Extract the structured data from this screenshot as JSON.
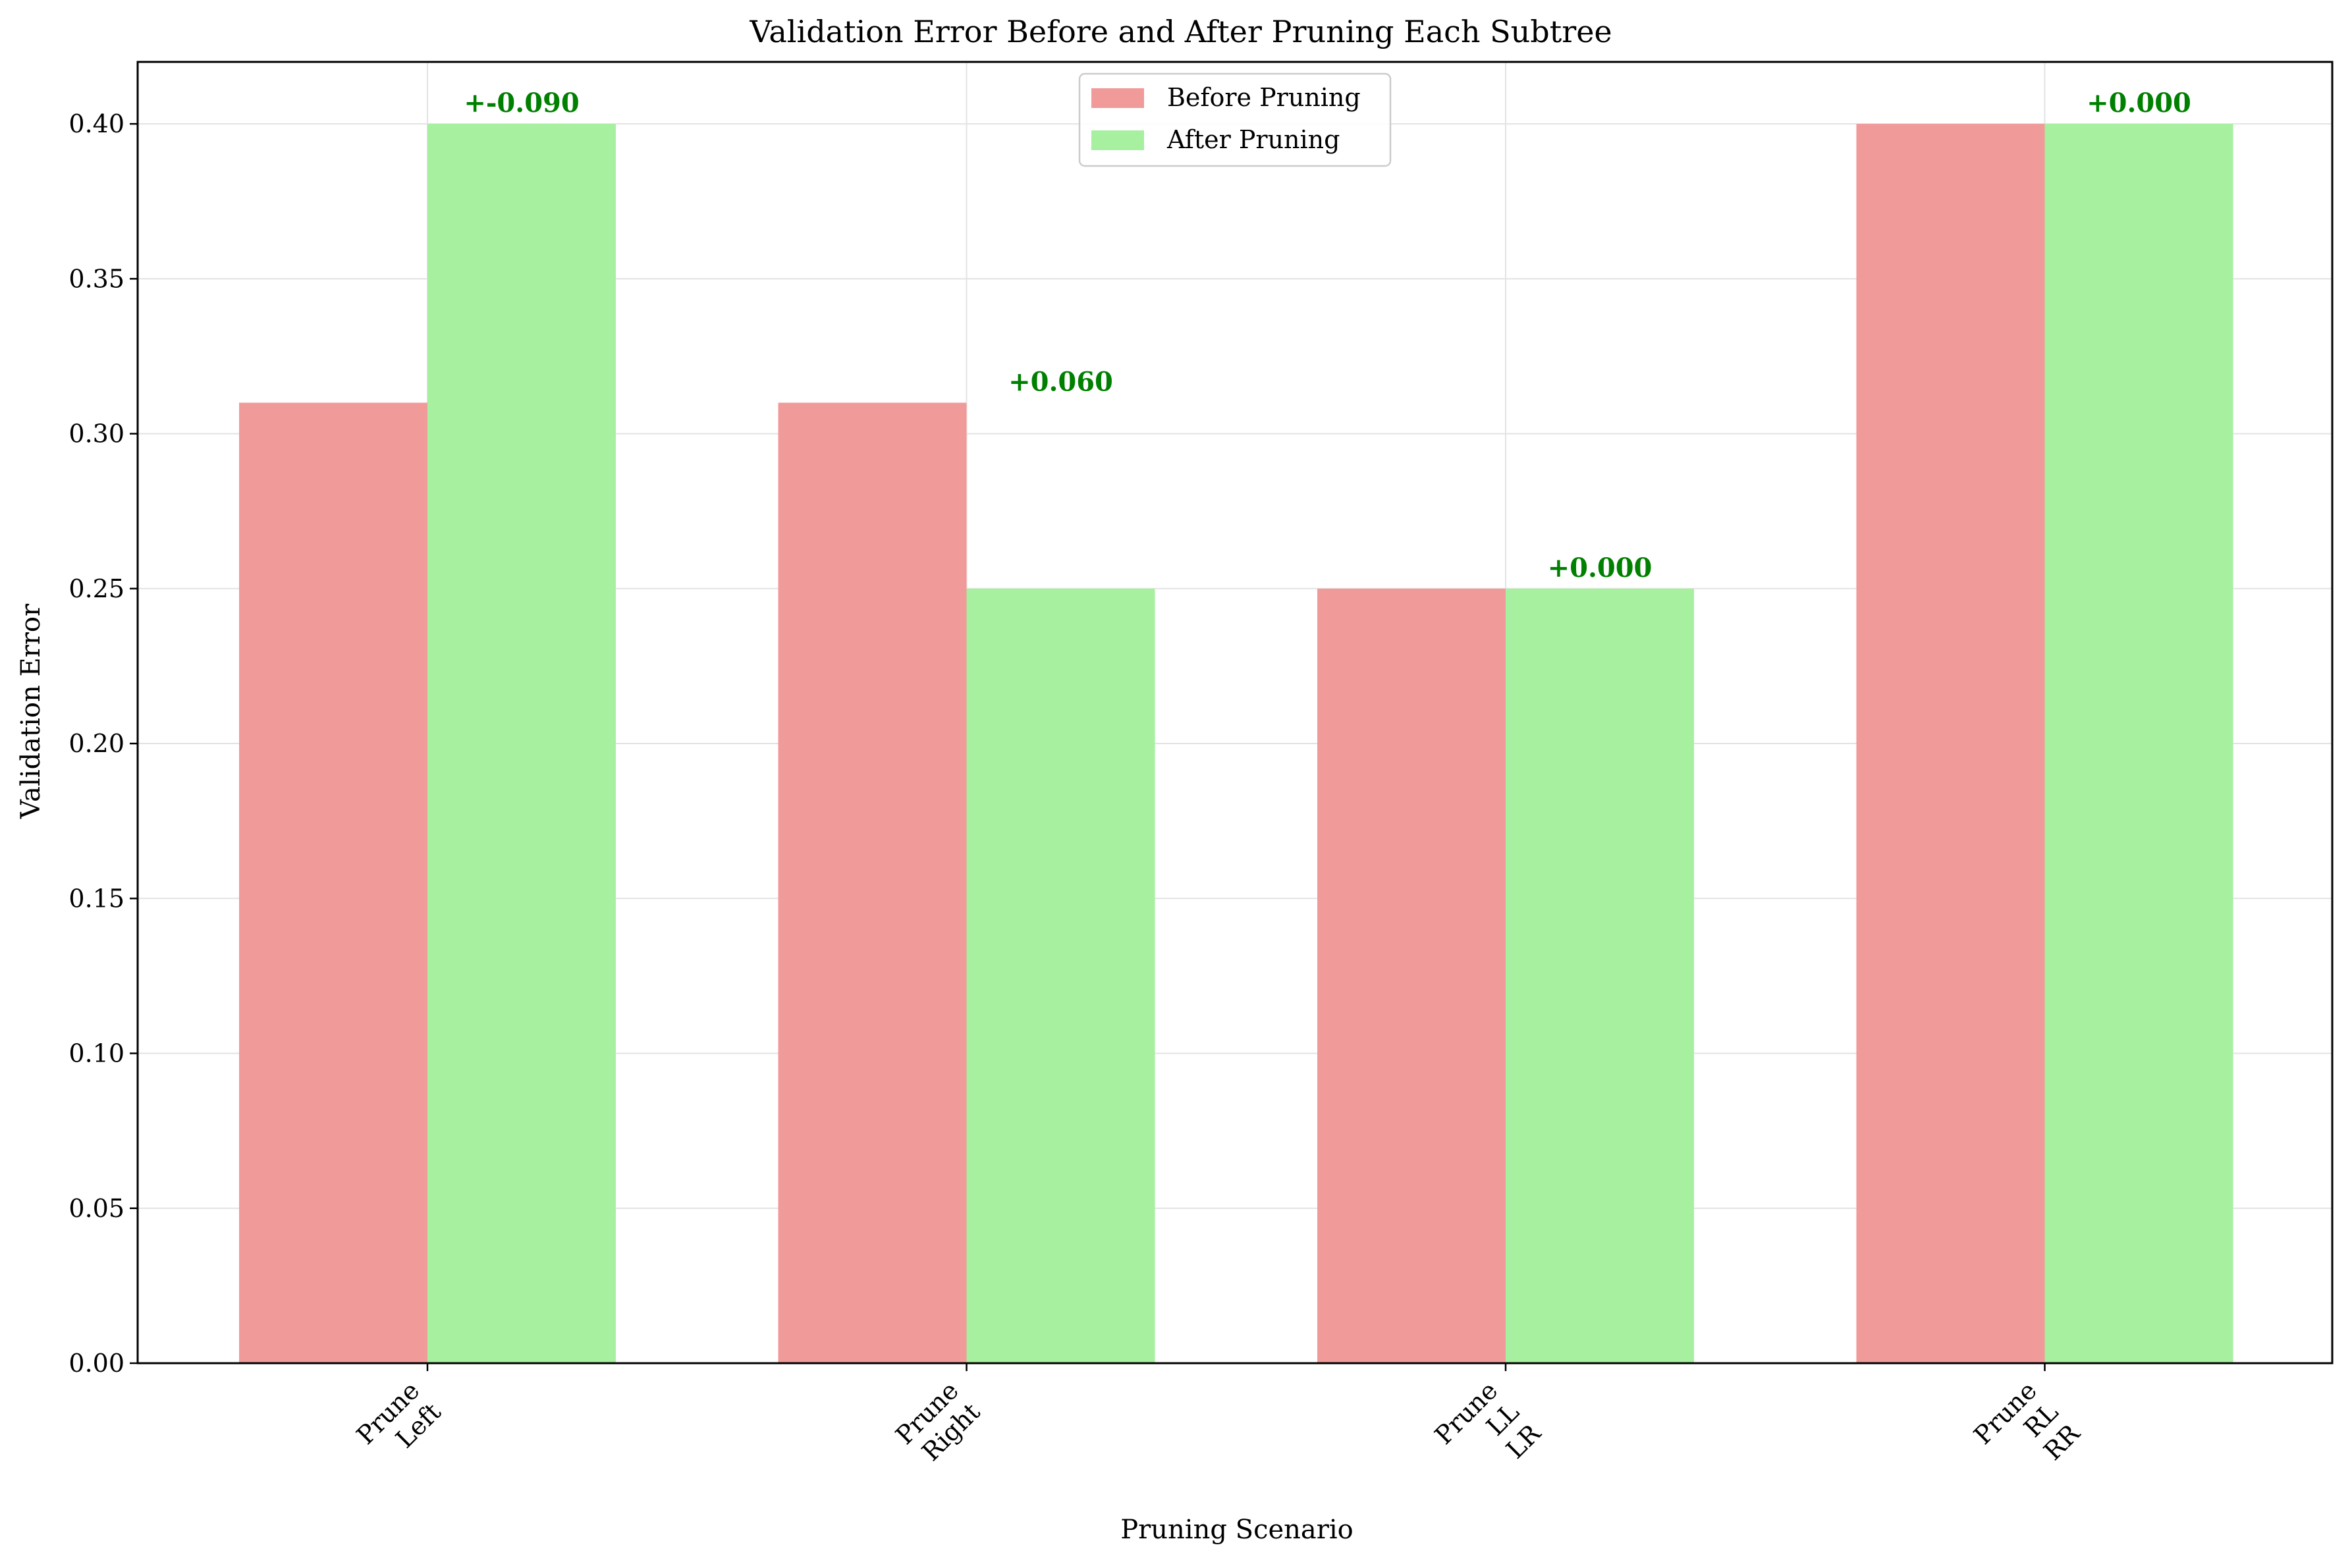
{
  "chart_data": {
    "type": "bar",
    "title": "Validation Error Before and After Pruning Each Subtree",
    "xlabel": "Pruning Scenario",
    "ylabel": "Validation Error",
    "ylim": [
      0,
      0.42
    ],
    "yticks": [
      0.0,
      0.05,
      0.1,
      0.15,
      0.2,
      0.25,
      0.3,
      0.35,
      0.4
    ],
    "ytick_labels": [
      "0.00",
      "0.05",
      "0.10",
      "0.15",
      "0.20",
      "0.25",
      "0.30",
      "0.35",
      "0.40"
    ],
    "grid": true,
    "legend_position": "top-center",
    "categories": [
      [
        "Prune",
        "Left"
      ],
      [
        "Prune",
        "Right"
      ],
      [
        "Prune",
        "LL",
        "LR"
      ],
      [
        "Prune",
        "RL",
        "RR"
      ]
    ],
    "series": [
      {
        "name": "Before Pruning",
        "values": [
          0.31,
          0.31,
          0.25,
          0.4
        ],
        "color": "#f19a9a"
      },
      {
        "name": "After Pruning",
        "values": [
          0.4,
          0.25,
          0.25,
          0.4
        ],
        "color": "#a6f0a0"
      }
    ],
    "annotations": [
      {
        "category_index": 0,
        "text": "+-0.090",
        "y": 0.4
      },
      {
        "category_index": 1,
        "text": "+0.060",
        "y": 0.31
      },
      {
        "category_index": 2,
        "text": "+0.000",
        "y": 0.25
      },
      {
        "category_index": 3,
        "text": "+0.000",
        "y": 0.4
      }
    ],
    "annotation_color": "#008000"
  }
}
